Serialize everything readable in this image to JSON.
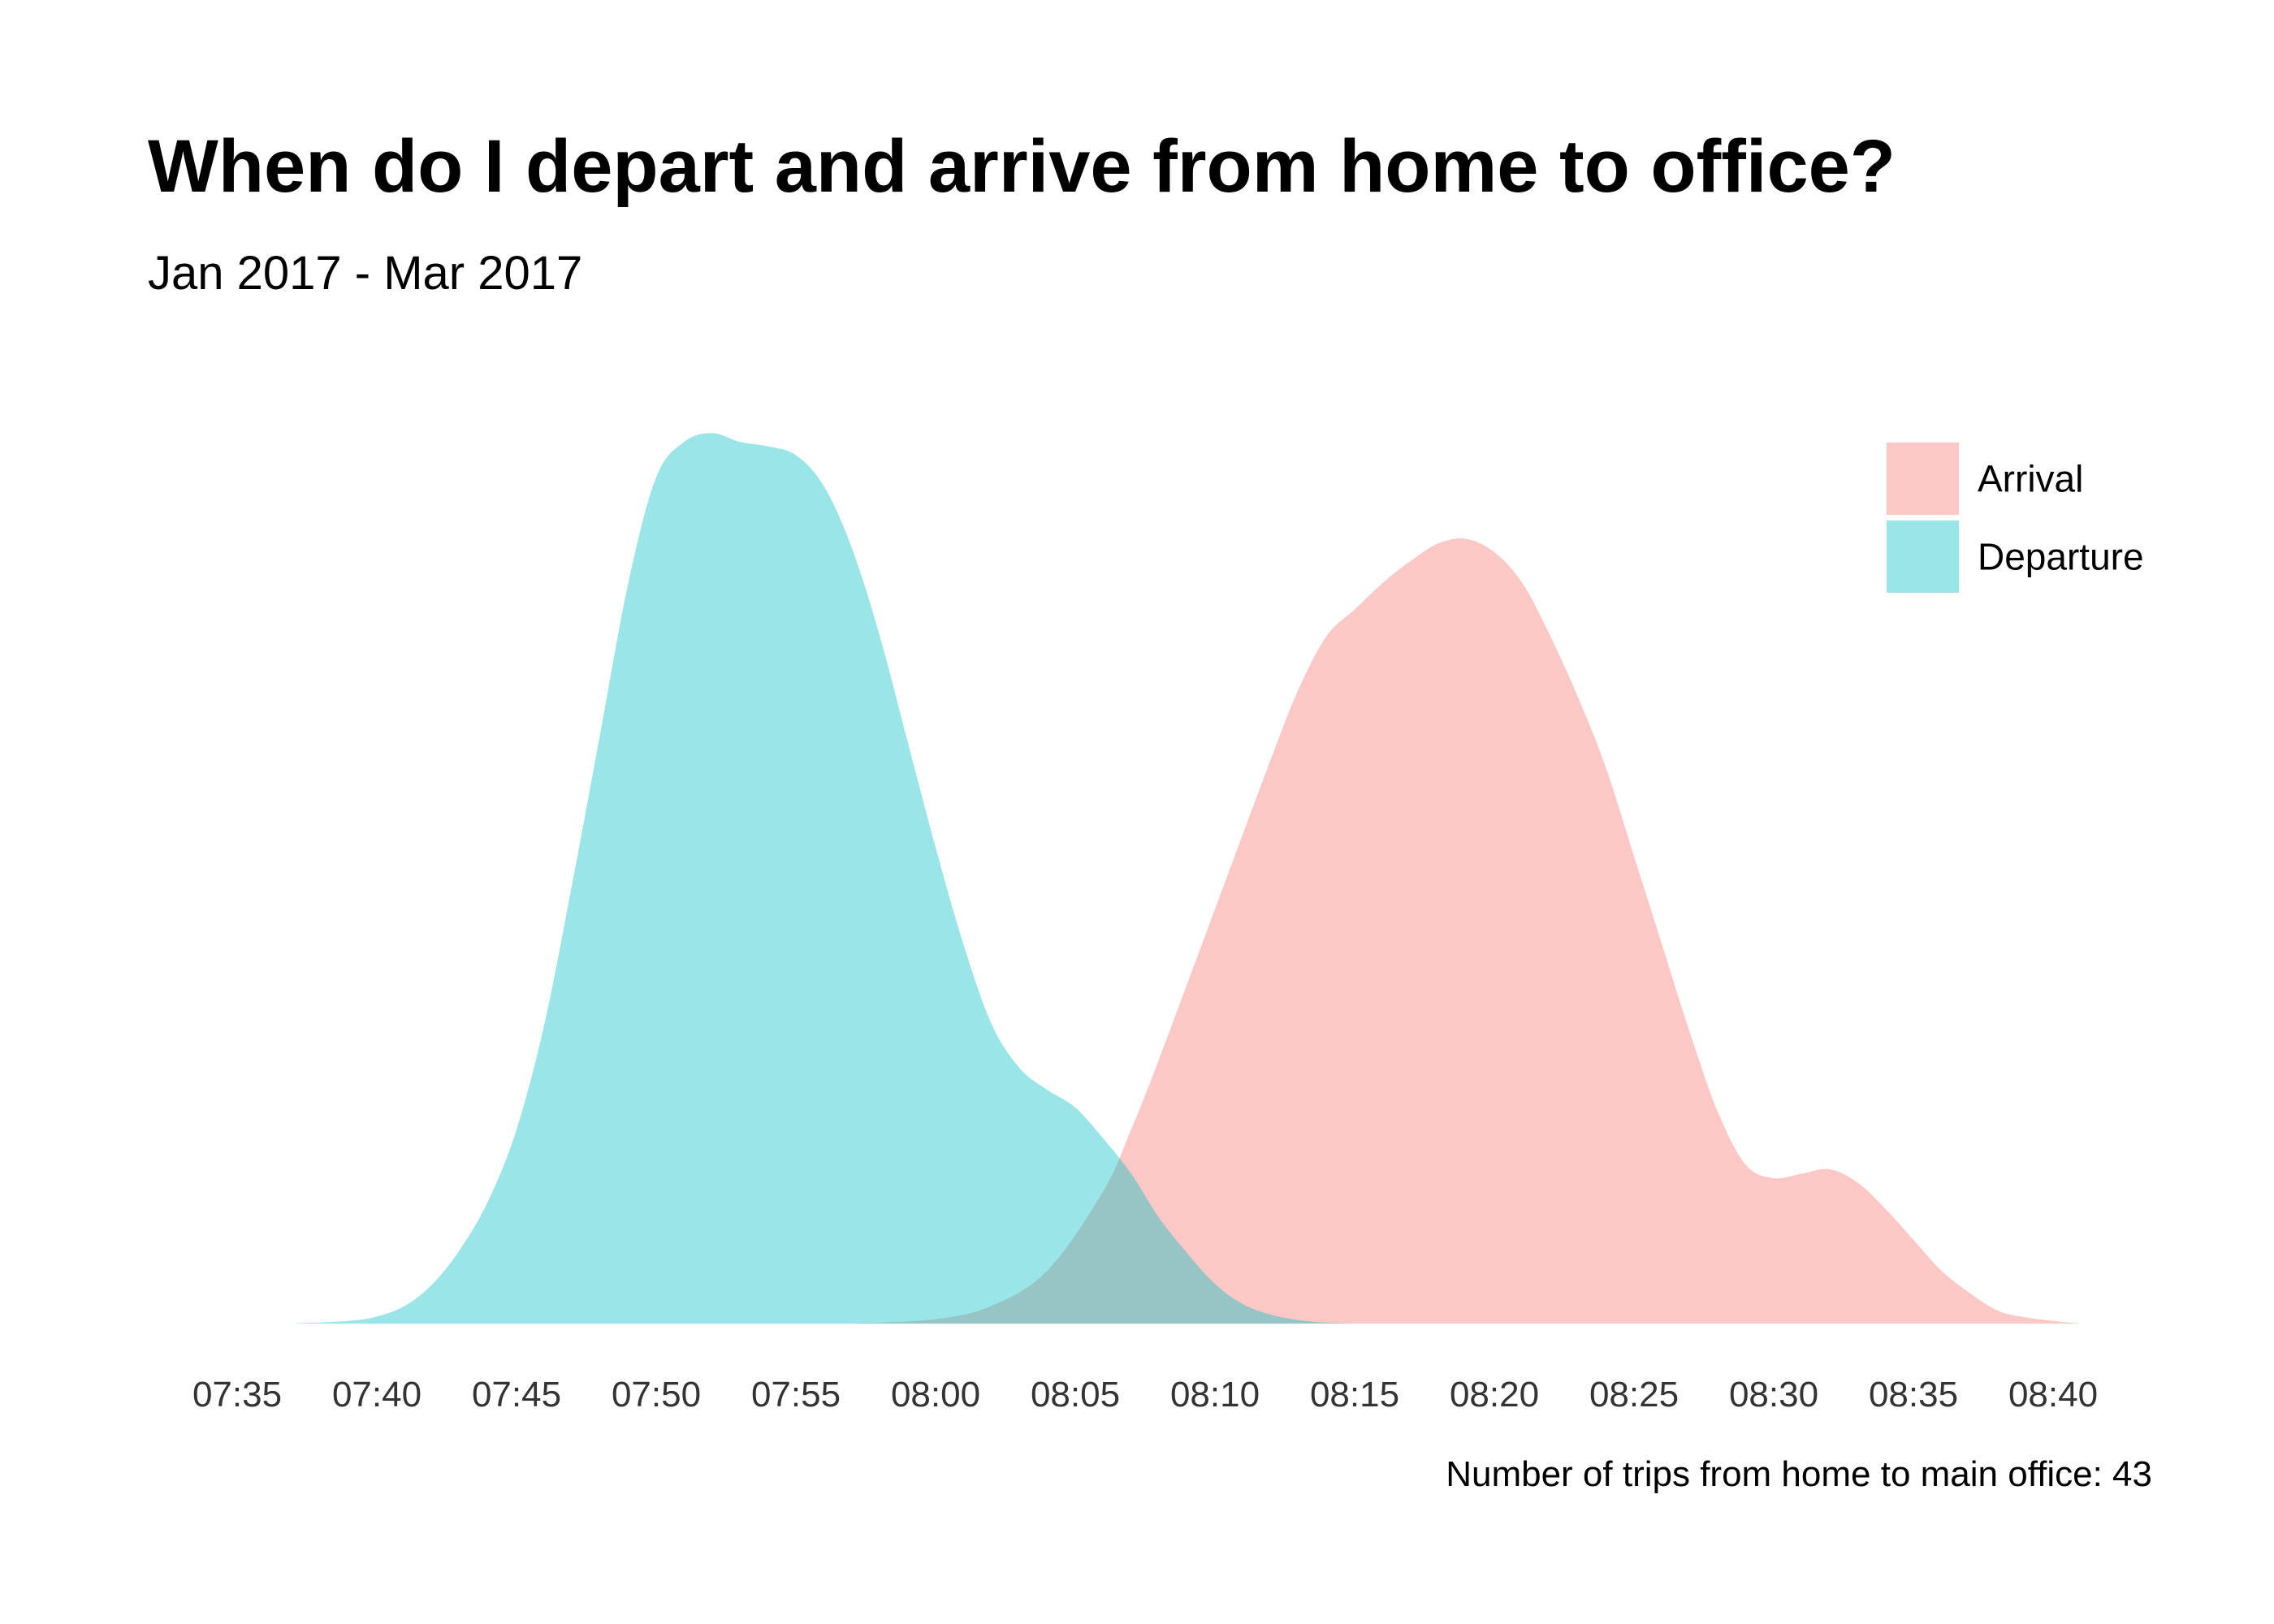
{
  "chart_data": {
    "type": "area",
    "title": "When do I depart and arrive from home to office?",
    "subtitle": "Jan 2017 - Mar 2017",
    "caption": "Number of trips from home to main office: 43",
    "xlabel": "",
    "ylabel": "",
    "x_ticks": [
      "07:35",
      "07:40",
      "07:45",
      "07:50",
      "07:55",
      "08:00",
      "08:05",
      "08:10",
      "08:15",
      "08:20",
      "08:25",
      "08:30",
      "08:35",
      "08:40"
    ],
    "x_tick_minutes": [
      455,
      460,
      465,
      470,
      475,
      480,
      485,
      490,
      495,
      500,
      505,
      510,
      515,
      520
    ],
    "xlim_minutes": [
      455,
      521
    ],
    "ylim": [
      0,
      1.05
    ],
    "grid": false,
    "legend_position": "top-right",
    "series": [
      {
        "name": "Arrival",
        "color": "#F8766D",
        "opacity": 0.4,
        "points": [
          [
            477,
            0
          ],
          [
            480,
            0.005
          ],
          [
            482,
            0.02
          ],
          [
            484,
            0.06
          ],
          [
            486,
            0.15
          ],
          [
            487,
            0.22
          ],
          [
            488,
            0.3
          ],
          [
            490,
            0.47
          ],
          [
            492,
            0.64
          ],
          [
            493,
            0.72
          ],
          [
            494,
            0.78
          ],
          [
            495,
            0.81
          ],
          [
            496,
            0.84
          ],
          [
            497,
            0.865
          ],
          [
            498,
            0.885
          ],
          [
            499,
            0.89
          ],
          [
            500,
            0.875
          ],
          [
            501,
            0.84
          ],
          [
            502,
            0.78
          ],
          [
            503,
            0.71
          ],
          [
            504,
            0.63
          ],
          [
            505,
            0.53
          ],
          [
            506,
            0.43
          ],
          [
            507,
            0.33
          ],
          [
            508,
            0.24
          ],
          [
            509,
            0.18
          ],
          [
            510,
            0.165
          ],
          [
            511,
            0.17
          ],
          [
            512,
            0.175
          ],
          [
            513,
            0.16
          ],
          [
            514,
            0.13
          ],
          [
            515,
            0.095
          ],
          [
            516,
            0.06
          ],
          [
            517,
            0.035
          ],
          [
            518,
            0.015
          ],
          [
            519,
            0.007
          ],
          [
            520,
            0.003
          ],
          [
            521,
            0
          ]
        ]
      },
      {
        "name": "Departure",
        "color": "#00BFC4",
        "opacity": 0.4,
        "points": [
          [
            457,
            0
          ],
          [
            459,
            0.003
          ],
          [
            460,
            0.008
          ],
          [
            461,
            0.02
          ],
          [
            462,
            0.045
          ],
          [
            463,
            0.085
          ],
          [
            464,
            0.14
          ],
          [
            465,
            0.22
          ],
          [
            466,
            0.34
          ],
          [
            467,
            0.5
          ],
          [
            468,
            0.67
          ],
          [
            469,
            0.84
          ],
          [
            470,
            0.96
          ],
          [
            471,
            1.0
          ],
          [
            472,
            1.01
          ],
          [
            473,
            1.0
          ],
          [
            474,
            0.995
          ],
          [
            475,
            0.985
          ],
          [
            476,
            0.95
          ],
          [
            477,
            0.88
          ],
          [
            478,
            0.78
          ],
          [
            479,
            0.66
          ],
          [
            480,
            0.54
          ],
          [
            481,
            0.43
          ],
          [
            482,
            0.34
          ],
          [
            483,
            0.29
          ],
          [
            484,
            0.265
          ],
          [
            485,
            0.245
          ],
          [
            486,
            0.21
          ],
          [
            487,
            0.17
          ],
          [
            488,
            0.12
          ],
          [
            489,
            0.08
          ],
          [
            490,
            0.045
          ],
          [
            491,
            0.022
          ],
          [
            492,
            0.01
          ],
          [
            493,
            0.004
          ],
          [
            494,
            0.001
          ],
          [
            495,
            0
          ]
        ]
      }
    ]
  }
}
